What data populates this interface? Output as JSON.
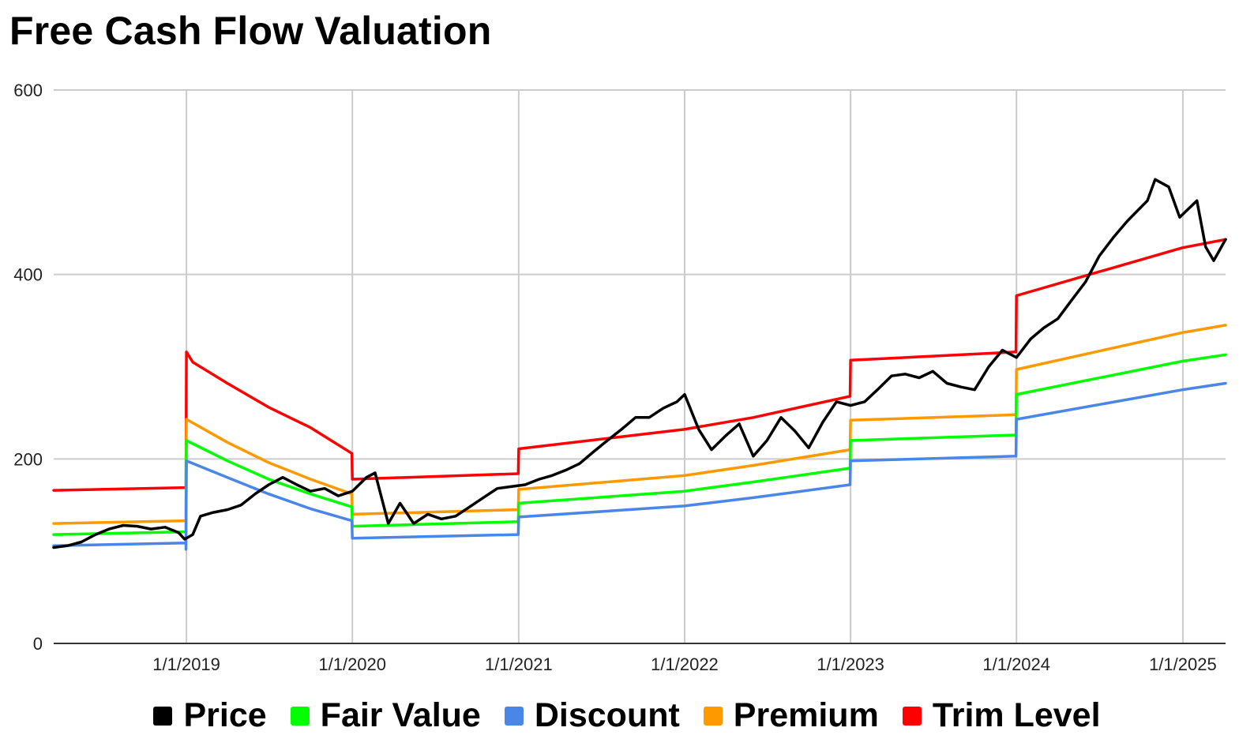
{
  "chart_data": {
    "type": "line",
    "title": "Free Cash Flow Valuation",
    "xlabel": "",
    "ylabel": "",
    "ylim": [
      0,
      600
    ],
    "xlim": [
      "2018-03-15",
      "2025-04-05"
    ],
    "yticks": [
      "0",
      "200",
      "400",
      "600"
    ],
    "xticks": [
      "1/1/2019",
      "1/1/2020",
      "1/1/2021",
      "1/1/2022",
      "1/1/2023",
      "1/1/2024",
      "1/1/2025"
    ],
    "grid": true,
    "legend_position": "bottom",
    "series": [
      {
        "name": "Price",
        "color": "#000000",
        "points": [
          [
            "2018-03-15",
            104
          ],
          [
            "2018-04-15",
            106
          ],
          [
            "2018-05-15",
            110
          ],
          [
            "2018-06-15",
            118
          ],
          [
            "2018-07-15",
            124
          ],
          [
            "2018-08-15",
            128
          ],
          [
            "2018-09-15",
            127
          ],
          [
            "2018-10-15",
            124
          ],
          [
            "2018-11-15",
            126
          ],
          [
            "2018-12-15",
            120
          ],
          [
            "2018-12-28",
            113
          ],
          [
            "2019-01-15",
            118
          ],
          [
            "2019-02-01",
            138
          ],
          [
            "2019-03-01",
            142
          ],
          [
            "2019-04-01",
            145
          ],
          [
            "2019-05-01",
            150
          ],
          [
            "2019-06-01",
            162
          ],
          [
            "2019-07-01",
            172
          ],
          [
            "2019-08-01",
            180
          ],
          [
            "2019-09-01",
            172
          ],
          [
            "2019-10-01",
            165
          ],
          [
            "2019-11-01",
            168
          ],
          [
            "2019-12-01",
            160
          ],
          [
            "2020-01-01",
            165
          ],
          [
            "2020-02-01",
            180
          ],
          [
            "2020-02-20",
            185
          ],
          [
            "2020-03-20",
            130
          ],
          [
            "2020-04-15",
            152
          ],
          [
            "2020-05-15",
            130
          ],
          [
            "2020-06-15",
            140
          ],
          [
            "2020-07-15",
            135
          ],
          [
            "2020-08-15",
            138
          ],
          [
            "2020-09-15",
            148
          ],
          [
            "2020-10-15",
            158
          ],
          [
            "2020-11-15",
            168
          ],
          [
            "2020-12-15",
            170
          ],
          [
            "2021-01-15",
            172
          ],
          [
            "2021-02-15",
            178
          ],
          [
            "2021-03-15",
            182
          ],
          [
            "2021-04-15",
            188
          ],
          [
            "2021-05-15",
            195
          ],
          [
            "2021-06-15",
            208
          ],
          [
            "2021-07-15",
            220
          ],
          [
            "2021-08-15",
            232
          ],
          [
            "2021-09-15",
            245
          ],
          [
            "2021-10-15",
            245
          ],
          [
            "2021-11-15",
            255
          ],
          [
            "2021-12-15",
            262
          ],
          [
            "2022-01-01",
            270
          ],
          [
            "2022-02-01",
            232
          ],
          [
            "2022-03-01",
            210
          ],
          [
            "2022-04-01",
            225
          ],
          [
            "2022-05-01",
            238
          ],
          [
            "2022-06-01",
            203
          ],
          [
            "2022-07-01",
            220
          ],
          [
            "2022-08-01",
            245
          ],
          [
            "2022-09-01",
            230
          ],
          [
            "2022-10-01",
            212
          ],
          [
            "2022-11-01",
            240
          ],
          [
            "2022-12-01",
            262
          ],
          [
            "2023-01-01",
            258
          ],
          [
            "2023-02-01",
            262
          ],
          [
            "2023-03-01",
            275
          ],
          [
            "2023-04-01",
            290
          ],
          [
            "2023-05-01",
            292
          ],
          [
            "2023-06-01",
            288
          ],
          [
            "2023-07-01",
            295
          ],
          [
            "2023-08-01",
            282
          ],
          [
            "2023-09-01",
            278
          ],
          [
            "2023-10-01",
            275
          ],
          [
            "2023-11-01",
            300
          ],
          [
            "2023-12-01",
            318
          ],
          [
            "2024-01-01",
            310
          ],
          [
            "2024-02-01",
            330
          ],
          [
            "2024-03-01",
            342
          ],
          [
            "2024-04-01",
            352
          ],
          [
            "2024-05-01",
            372
          ],
          [
            "2024-06-01",
            392
          ],
          [
            "2024-07-01",
            420
          ],
          [
            "2024-08-01",
            440
          ],
          [
            "2024-09-01",
            458
          ],
          [
            "2024-10-15",
            480
          ],
          [
            "2024-11-01",
            503
          ],
          [
            "2024-12-01",
            495
          ],
          [
            "2024-12-25",
            462
          ],
          [
            "2025-02-01",
            480
          ],
          [
            "2025-02-20",
            430
          ],
          [
            "2025-03-10",
            415
          ],
          [
            "2025-04-05",
            438
          ]
        ]
      },
      {
        "name": "Fair Value",
        "color": "#00ff00",
        "points": [
          [
            "2018-03-15",
            118
          ],
          [
            "2018-12-31",
            121
          ],
          [
            "2019-01-01",
            220
          ],
          [
            "2019-04-01",
            198
          ],
          [
            "2019-07-01",
            178
          ],
          [
            "2019-10-01",
            162
          ],
          [
            "2019-12-31",
            148
          ],
          [
            "2020-01-01",
            127
          ],
          [
            "2020-12-31",
            132
          ],
          [
            "2021-01-01",
            152
          ],
          [
            "2021-12-31",
            165
          ],
          [
            "2022-06-01",
            175
          ],
          [
            "2022-12-31",
            190
          ],
          [
            "2023-01-01",
            220
          ],
          [
            "2023-12-31",
            226
          ],
          [
            "2024-01-01",
            270
          ],
          [
            "2024-12-31",
            306
          ],
          [
            "2025-04-05",
            313
          ]
        ]
      },
      {
        "name": "Discount",
        "color": "#4a86e8",
        "points": [
          [
            "2018-03-15",
            106
          ],
          [
            "2018-12-31",
            109
          ],
          [
            "2018-12-31",
            102
          ],
          [
            "2019-01-01",
            198
          ],
          [
            "2019-04-01",
            180
          ],
          [
            "2019-07-01",
            162
          ],
          [
            "2019-10-01",
            146
          ],
          [
            "2019-12-31",
            133
          ],
          [
            "2020-01-01",
            114
          ],
          [
            "2020-12-31",
            118
          ],
          [
            "2021-01-01",
            137
          ],
          [
            "2021-12-31",
            149
          ],
          [
            "2022-06-01",
            158
          ],
          [
            "2022-12-31",
            172
          ],
          [
            "2023-01-01",
            198
          ],
          [
            "2023-12-31",
            203
          ],
          [
            "2024-01-01",
            243
          ],
          [
            "2024-12-31",
            275
          ],
          [
            "2025-04-05",
            282
          ]
        ]
      },
      {
        "name": "Premium",
        "color": "#ff9900",
        "points": [
          [
            "2018-03-15",
            130
          ],
          [
            "2018-12-31",
            133
          ],
          [
            "2018-12-31",
            155
          ],
          [
            "2019-01-01",
            243
          ],
          [
            "2019-04-01",
            218
          ],
          [
            "2019-07-01",
            196
          ],
          [
            "2019-10-01",
            178
          ],
          [
            "2019-12-31",
            162
          ],
          [
            "2020-01-01",
            140
          ],
          [
            "2020-12-31",
            145
          ],
          [
            "2021-01-01",
            167
          ],
          [
            "2021-12-31",
            182
          ],
          [
            "2022-06-01",
            193
          ],
          [
            "2022-12-31",
            210
          ],
          [
            "2023-01-01",
            242
          ],
          [
            "2023-12-31",
            248
          ],
          [
            "2024-01-01",
            297
          ],
          [
            "2024-12-31",
            337
          ],
          [
            "2025-04-05",
            345
          ]
        ]
      },
      {
        "name": "Trim Level",
        "color": "#ff0000",
        "points": [
          [
            "2018-03-15",
            166
          ],
          [
            "2018-12-31",
            169
          ],
          [
            "2019-01-01",
            316
          ],
          [
            "2019-01-15",
            305
          ],
          [
            "2019-04-01",
            282
          ],
          [
            "2019-07-01",
            256
          ],
          [
            "2019-10-01",
            234
          ],
          [
            "2019-12-31",
            206
          ],
          [
            "2020-01-01",
            178
          ],
          [
            "2020-12-31",
            184
          ],
          [
            "2021-01-01",
            211
          ],
          [
            "2021-12-31",
            232
          ],
          [
            "2022-06-01",
            245
          ],
          [
            "2022-12-31",
            268
          ],
          [
            "2023-01-01",
            307
          ],
          [
            "2023-12-31",
            316
          ],
          [
            "2024-01-01",
            377
          ],
          [
            "2024-12-31",
            429
          ],
          [
            "2025-04-05",
            438
          ]
        ]
      }
    ]
  }
}
